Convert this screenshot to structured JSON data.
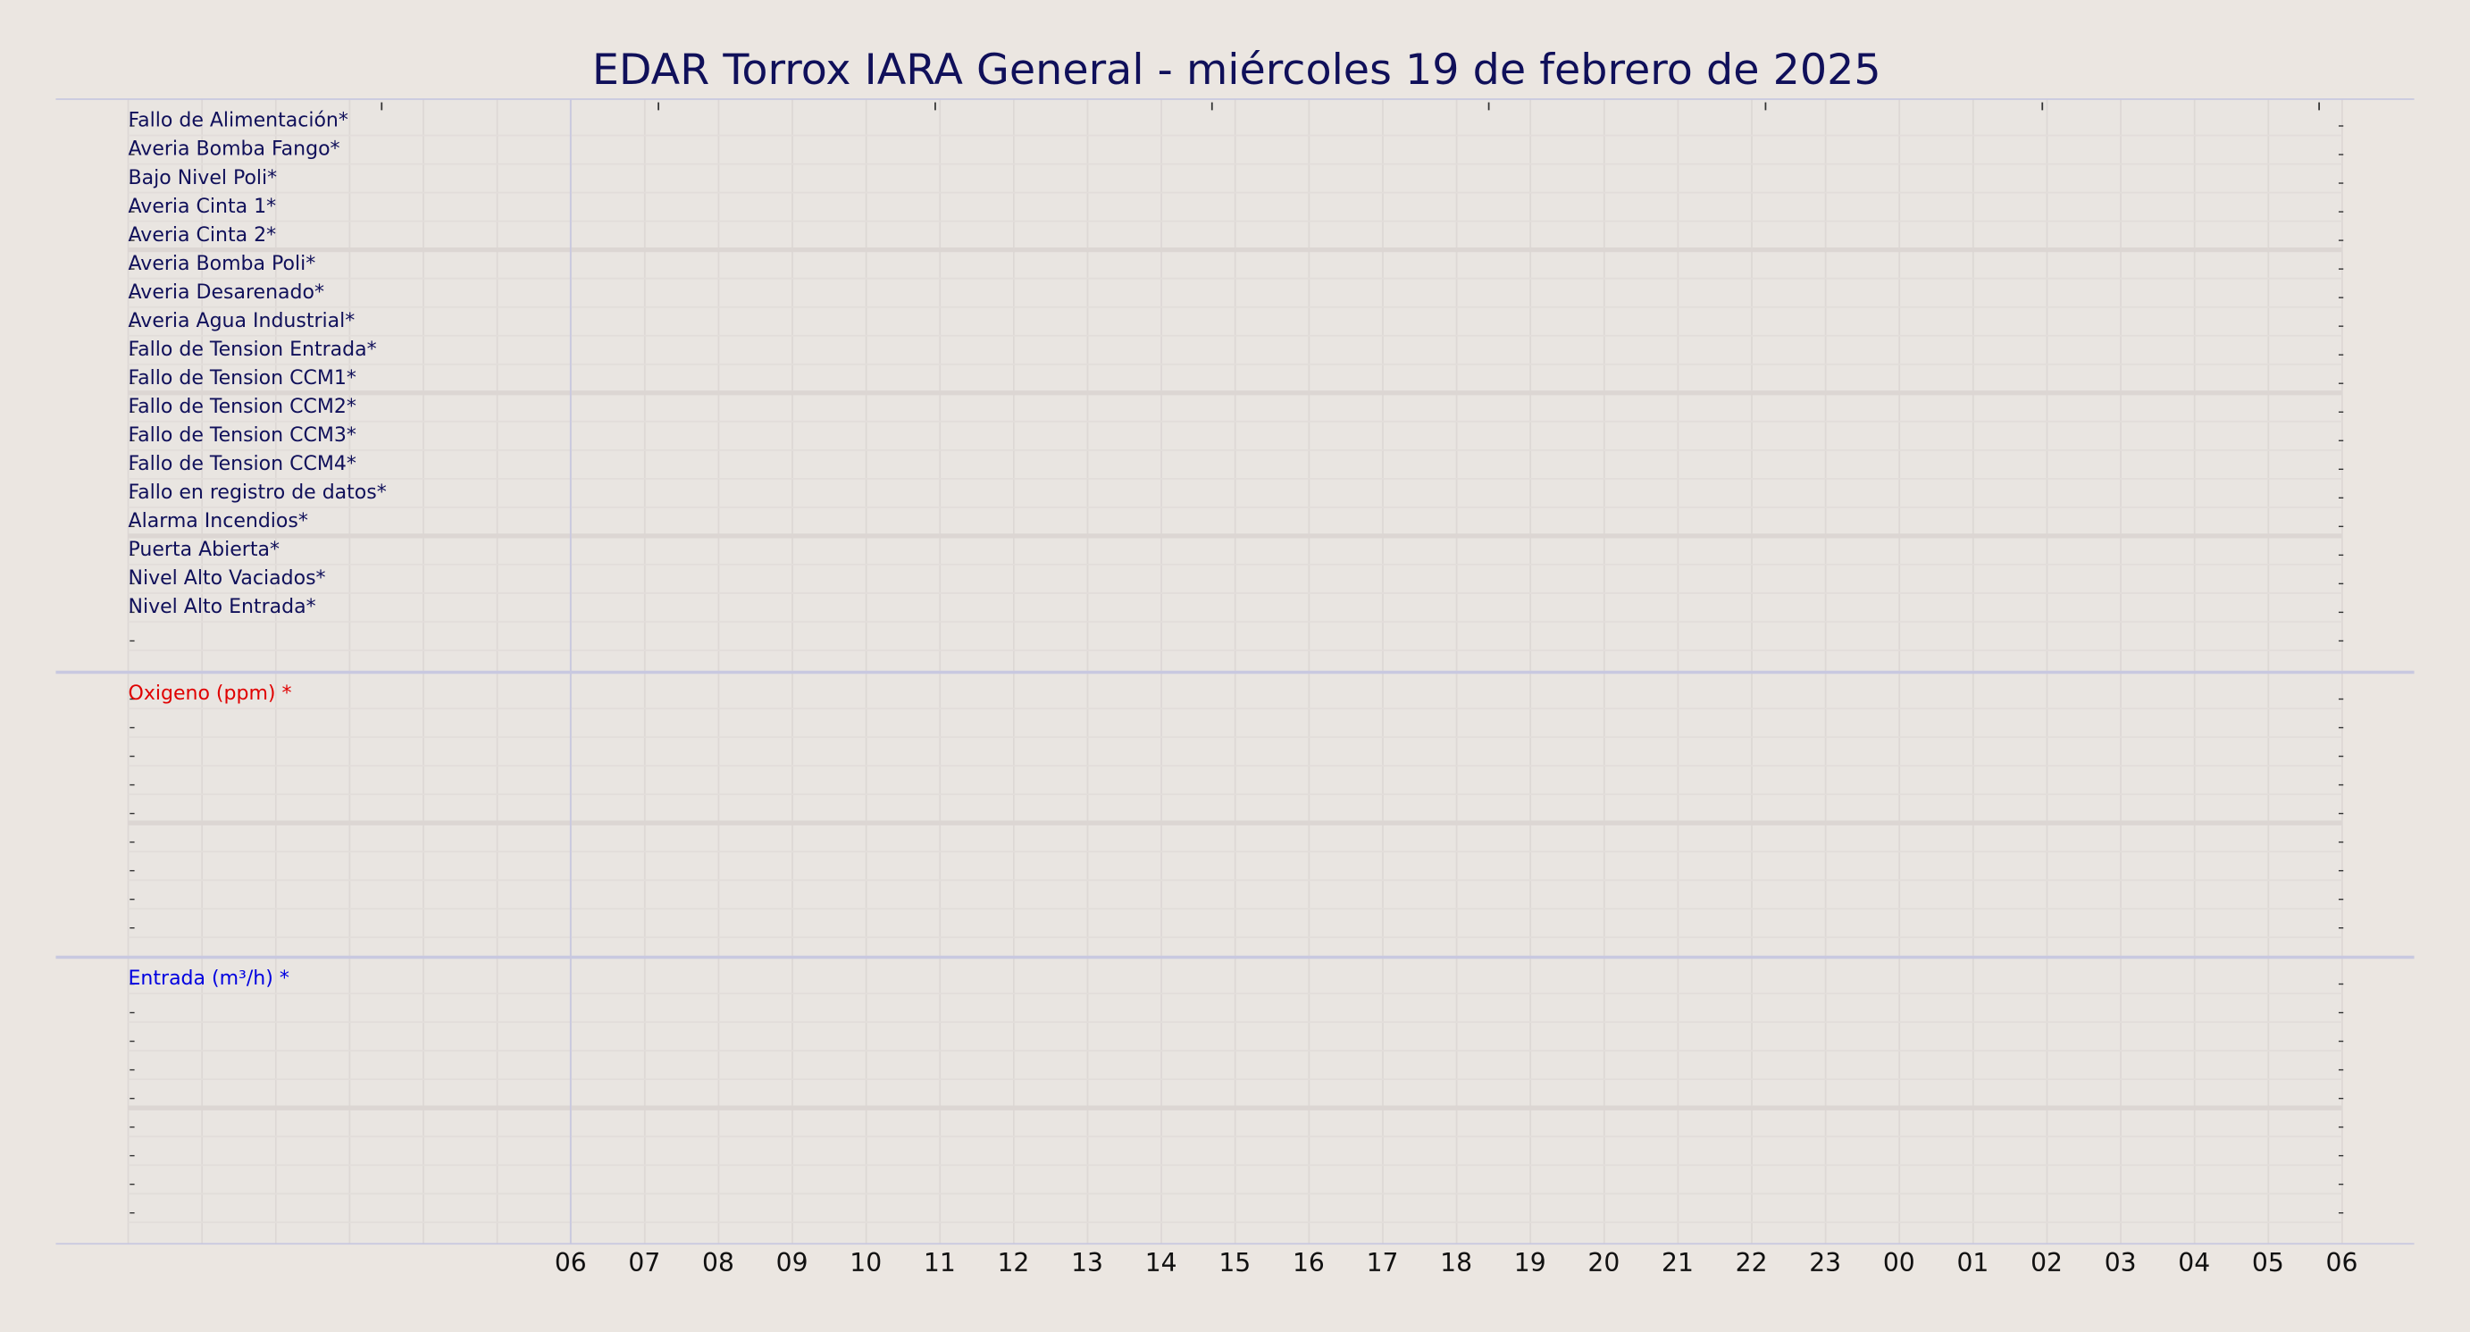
{
  "chart_data": {
    "type": "timeline",
    "title": "EDAR Torrox IARA General   -   miércoles 19 de febrero de 2025",
    "categories": [
      "06",
      "07",
      "08",
      "09",
      "10",
      "11",
      "12",
      "13",
      "14",
      "15",
      "16",
      "17",
      "18",
      "19",
      "20",
      "21",
      "22",
      "23",
      "00",
      "01",
      "02",
      "03",
      "04",
      "05",
      "06"
    ],
    "panels": [
      {
        "color": "#10105a",
        "labels": [
          "Fallo de Alimentación*",
          "Averia Bomba Fango*",
          "Bajo Nivel Poli*",
          "Averia Cinta 1*",
          "Averia Cinta 2*",
          "Averia Bomba Poli*",
          "Averia Desarenado*",
          "Averia Agua Industrial*",
          "Fallo de Tension Entrada*",
          "Fallo de Tension CCM1*",
          "Fallo de Tension CCM2*",
          "Fallo de Tension CCM3*",
          "Fallo de Tension CCM4*",
          "Fallo en registro de datos*",
          "Alarma Incendios*",
          "Puerta Abierta*",
          "Nivel Alto Vaciados*",
          "Nivel Alto Entrada*"
        ]
      },
      {
        "color": "#e00000",
        "labels": [
          "Oxigeno (ppm) *"
        ]
      },
      {
        "color": "#0000e0",
        "labels": [
          "Entrada (m³/h) *"
        ]
      }
    ]
  }
}
